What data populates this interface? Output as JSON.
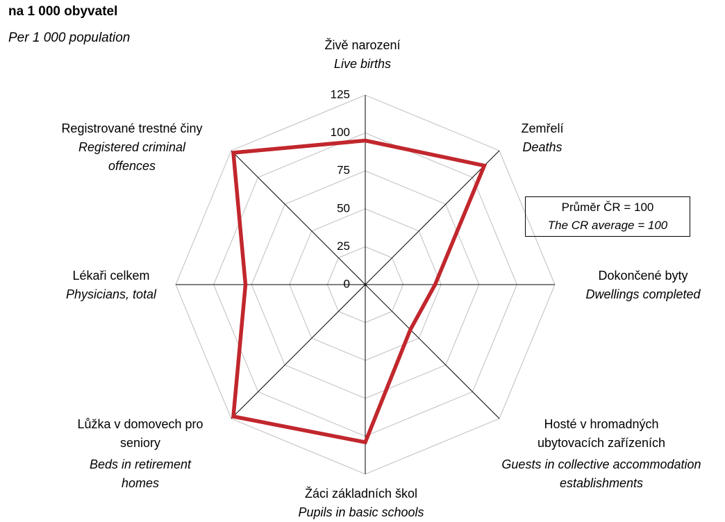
{
  "chart_data": {
    "type": "radar",
    "title": "na 1 000 obyvatel",
    "subtitle": "Per 1 000 population",
    "annotation": "Průměr ČR = 100",
    "annotation_en": "The CR average = 100",
    "categories": [
      "Živě narození",
      "Zemřelí",
      "Dokončené byty",
      "Hosté v hromadných ubytovacích zařízeních",
      "Žáci základních škol",
      "Lůžka v domovech pro seniory",
      "Lékaři celkem",
      "Registrované trestné činy"
    ],
    "categories_en": [
      "Live births",
      "Deaths",
      "Dwellings completed",
      "Guests in collective accommodation establishments",
      "Pupils in basic schools",
      "Beds in retirement homes",
      "Physicians, total",
      "Registered criminal offences"
    ],
    "series": [
      {
        "name": "",
        "color": "#c1272d",
        "values": [
          95,
          111,
          46,
          42,
          104,
          123,
          79,
          123
        ]
      }
    ],
    "ylim": [
      0,
      125
    ],
    "yticks": [
      0,
      25,
      50,
      75,
      100,
      125
    ],
    "grid": true
  }
}
